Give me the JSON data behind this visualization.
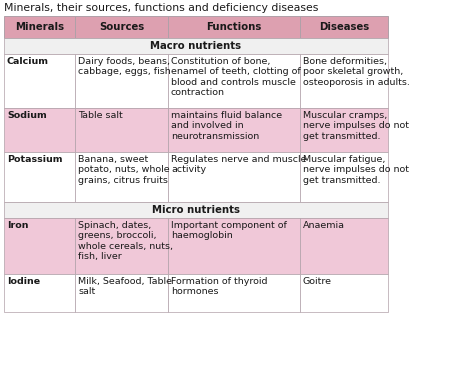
{
  "title": "Minerals, their sources, functions and deficiency diseases",
  "headers": [
    "Minerals",
    "Sources",
    "Functions",
    "Diseases"
  ],
  "header_bg": "#dda0b0",
  "macro_label": "Macro nutrients",
  "micro_label": "Micro nutrients",
  "section_bg": "#f0f0f0",
  "rows": [
    {
      "mineral": "Calcium",
      "sources": "Dairy foods, beans,\ncabbage, eggs, fish",
      "functions": "Constitution of bone,\nenamel of teeth, clotting of\nblood and controls muscle\ncontraction",
      "diseases": "Bone deformities,\npoor skeletal growth,\nosteoporosis in adults.",
      "bg": "#ffffff"
    },
    {
      "mineral": "Sodium",
      "sources": "Table salt",
      "functions": "maintains fluid balance\nand involved in\nneurotransmission",
      "diseases": "Muscular cramps,\nnerve impulses do not\nget transmitted.",
      "bg": "#f0c8d8"
    },
    {
      "mineral": "Potassium",
      "sources": "Banana, sweet\npotato, nuts, whole\ngrains, citrus fruits",
      "functions": "Regulates nerve and muscle\nactivity",
      "diseases": "Muscular fatigue,\nnerve impulses do not\nget transmitted.",
      "bg": "#ffffff"
    },
    {
      "mineral": "Iron",
      "sources": "Spinach, dates,\ngreens, broccoli,\nwhole cereals, nuts,\nfish, liver",
      "functions": "Important component of\nhaemoglobin",
      "diseases": "Anaemia",
      "bg": "#f0c8d8"
    },
    {
      "mineral": "Iodine",
      "sources": "Milk, Seafood, Table\nsalt",
      "functions": "Formation of thyroid\nhormones",
      "diseases": "Goitre",
      "bg": "#ffffff"
    }
  ],
  "fig_bg": "#ffffff",
  "border_color": "#b0a0a8",
  "text_color": "#1a1a1a",
  "font_size": 6.8,
  "title_font_size": 7.8
}
